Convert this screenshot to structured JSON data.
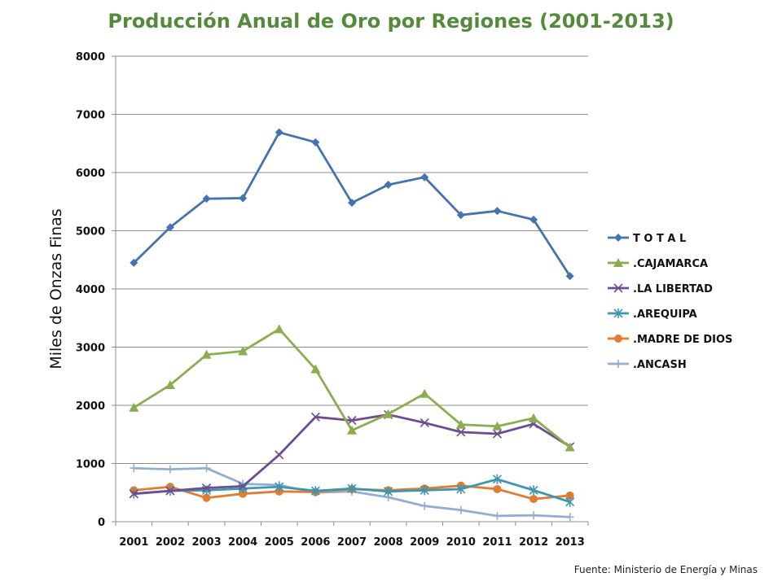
{
  "chart_data": {
    "type": "line",
    "title": "Producción Anual de Oro por Regiones (2001-2013)",
    "ylabel": "Miles de Onzas Finas",
    "xlabel": "",
    "ylim": [
      0,
      8000
    ],
    "yticks": [
      0,
      1000,
      2000,
      3000,
      4000,
      5000,
      6000,
      7000,
      8000
    ],
    "grid": "horizontal",
    "legend_position": "right",
    "categories": [
      "2001",
      "2002",
      "2003",
      "2004",
      "2005",
      "2006",
      "2007",
      "2008",
      "2009",
      "2010",
      "2011",
      "2012",
      "2013"
    ],
    "series": [
      {
        "name": "T O T A L",
        "color": "#4573b0",
        "marker": "diamond",
        "values": [
          4450,
          5060,
          5550,
          5560,
          6690,
          6520,
          5480,
          5790,
          5920,
          5270,
          5340,
          5190,
          4220
        ]
      },
      {
        "name": ".CAJAMARCA",
        "color": "#8cad4f",
        "marker": "triangle",
        "values": [
          1960,
          2350,
          2870,
          2930,
          3310,
          2620,
          1570,
          1850,
          2200,
          1670,
          1640,
          1780,
          1280
        ]
      },
      {
        "name": ".LA LIBERTAD",
        "color": "#6f4b8f",
        "marker": "x",
        "values": [
          480,
          530,
          580,
          610,
          1150,
          1800,
          1740,
          1840,
          1700,
          1540,
          1510,
          1680,
          1290
        ]
      },
      {
        "name": ".AREQUIPA",
        "color": "#3d96b0",
        "marker": "star",
        "values": [
          480,
          530,
          540,
          570,
          600,
          530,
          570,
          520,
          540,
          560,
          730,
          540,
          340
        ]
      },
      {
        "name": ".MADRE DE DIOS",
        "color": "#e07d31",
        "marker": "circle",
        "values": [
          540,
          600,
          410,
          480,
          520,
          510,
          560,
          540,
          570,
          620,
          560,
          390,
          450
        ]
      },
      {
        "name": ".ANCASH",
        "color": "#93aed2",
        "marker": "plus",
        "values": [
          920,
          900,
          920,
          650,
          630,
          500,
          520,
          420,
          270,
          200,
          100,
          110,
          80
        ]
      }
    ]
  },
  "source_note": "Fuente:  Ministerio de Energía y Minas"
}
